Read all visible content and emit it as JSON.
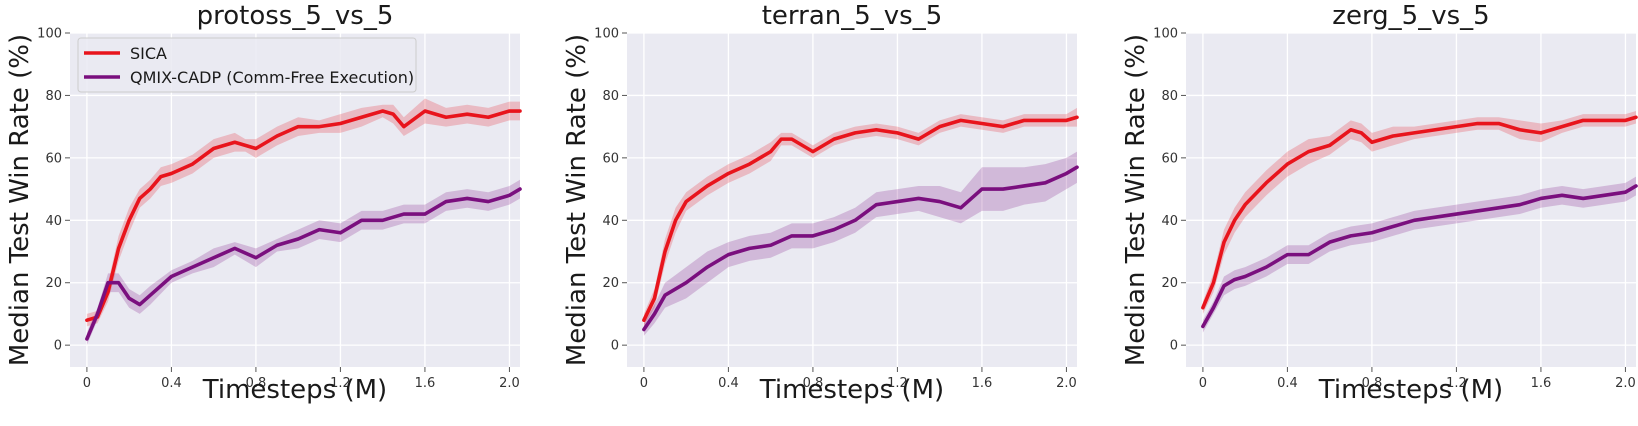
{
  "chart_data": [
    {
      "type": "line",
      "title": "protoss_5_vs_5",
      "xlabel": "Timesteps (M)",
      "ylabel": "Median Test Win Rate (%)",
      "xlim": [
        -0.08,
        2.05
      ],
      "ylim": [
        -7,
        100
      ],
      "xticks": [
        "0",
        "0.4",
        "0.8",
        "1.2",
        "1.6",
        "2.0"
      ],
      "yticks": [
        "0",
        "20",
        "40",
        "60",
        "80",
        "100"
      ],
      "grid": true,
      "legend": {
        "placement": "top-left",
        "entries": [
          "SICA",
          "QMIX-CADP (Comm-Free Execution)"
        ]
      },
      "series": [
        {
          "name": "SICA",
          "color": "#e8141c",
          "x": [
            0,
            0.05,
            0.1,
            0.15,
            0.2,
            0.25,
            0.3,
            0.35,
            0.4,
            0.5,
            0.6,
            0.7,
            0.75,
            0.8,
            0.9,
            1.0,
            1.1,
            1.2,
            1.3,
            1.4,
            1.45,
            1.5,
            1.6,
            1.7,
            1.8,
            1.9,
            2.0,
            2.05
          ],
          "y": [
            8,
            9,
            17,
            31,
            40,
            47,
            50,
            54,
            55,
            58,
            63,
            65,
            64,
            63,
            67,
            70,
            70,
            71,
            73,
            75,
            74,
            70,
            75,
            73,
            74,
            73,
            75,
            75
          ],
          "band": [
            2,
            2,
            3,
            4,
            4,
            3,
            3,
            3,
            3,
            3,
            3,
            3,
            2,
            3,
            3,
            3,
            2,
            3,
            3,
            2,
            3,
            3,
            4,
            3,
            3,
            3,
            3,
            3
          ]
        },
        {
          "name": "QMIX-CADP (Comm-Free Execution)",
          "color": "#7a0f7e",
          "x": [
            0,
            0.05,
            0.1,
            0.15,
            0.2,
            0.25,
            0.3,
            0.4,
            0.5,
            0.6,
            0.7,
            0.8,
            0.9,
            1.0,
            1.1,
            1.2,
            1.3,
            1.4,
            1.5,
            1.6,
            1.7,
            1.8,
            1.9,
            2.0,
            2.05
          ],
          "y": [
            2,
            10,
            20,
            20,
            15,
            13,
            16,
            22,
            25,
            28,
            31,
            28,
            32,
            34,
            37,
            36,
            40,
            40,
            42,
            42,
            46,
            47,
            46,
            48,
            50
          ],
          "band": [
            2,
            2,
            3,
            3,
            3,
            3,
            3,
            2,
            2,
            3,
            2,
            3,
            2,
            3,
            3,
            3,
            3,
            3,
            3,
            3,
            3,
            3,
            3,
            3,
            3
          ]
        }
      ]
    },
    {
      "type": "line",
      "title": "terran_5_vs_5",
      "xlabel": "Timesteps (M)",
      "ylabel": "Median Test Win Rate (%)",
      "xlim": [
        -0.08,
        2.05
      ],
      "ylim": [
        -7,
        100
      ],
      "xticks": [
        "0",
        "0.4",
        "0.8",
        "1.2",
        "1.6",
        "2.0"
      ],
      "yticks": [
        "0",
        "20",
        "40",
        "60",
        "80",
        "100"
      ],
      "grid": true,
      "series": [
        {
          "name": "SICA",
          "color": "#e8141c",
          "x": [
            0,
            0.05,
            0.1,
            0.15,
            0.2,
            0.3,
            0.4,
            0.5,
            0.6,
            0.65,
            0.7,
            0.8,
            0.9,
            1.0,
            1.1,
            1.2,
            1.3,
            1.4,
            1.5,
            1.6,
            1.7,
            1.8,
            1.9,
            2.0,
            2.05
          ],
          "y": [
            8,
            15,
            30,
            40,
            46,
            51,
            55,
            58,
            62,
            66,
            66,
            62,
            66,
            68,
            69,
            68,
            66,
            70,
            72,
            71,
            70,
            72,
            72,
            72,
            73
          ],
          "band": [
            2,
            3,
            4,
            4,
            3,
            3,
            3,
            3,
            3,
            2,
            2,
            2,
            2,
            2,
            2,
            2,
            2,
            2,
            2,
            2,
            2,
            2,
            2,
            2,
            3
          ]
        },
        {
          "name": "QMIX-CADP (Comm-Free Execution)",
          "color": "#7a0f7e",
          "x": [
            0,
            0.05,
            0.1,
            0.2,
            0.3,
            0.4,
            0.5,
            0.6,
            0.7,
            0.8,
            0.9,
            1.0,
            1.1,
            1.2,
            1.3,
            1.4,
            1.5,
            1.6,
            1.7,
            1.8,
            1.9,
            2.0,
            2.05
          ],
          "y": [
            5,
            10,
            16,
            20,
            25,
            29,
            31,
            32,
            35,
            35,
            37,
            40,
            45,
            46,
            47,
            46,
            44,
            50,
            50,
            51,
            52,
            55,
            57
          ],
          "band": [
            2,
            3,
            4,
            5,
            5,
            4,
            4,
            4,
            4,
            4,
            4,
            4,
            4,
            4,
            4,
            5,
            5,
            7,
            7,
            6,
            6,
            5,
            5
          ]
        }
      ]
    },
    {
      "type": "line",
      "title": "zerg_5_vs_5",
      "xlabel": "Timesteps (M)",
      "ylabel": "Median Test Win Rate (%)",
      "xlim": [
        -0.08,
        2.05
      ],
      "ylim": [
        -7,
        100
      ],
      "xticks": [
        "0",
        "0.4",
        "0.8",
        "1.2",
        "1.6",
        "2.0"
      ],
      "yticks": [
        "0",
        "20",
        "40",
        "60",
        "80",
        "100"
      ],
      "grid": true,
      "series": [
        {
          "name": "SICA",
          "color": "#e8141c",
          "x": [
            0,
            0.05,
            0.1,
            0.15,
            0.2,
            0.3,
            0.4,
            0.5,
            0.6,
            0.7,
            0.75,
            0.8,
            0.9,
            1.0,
            1.1,
            1.2,
            1.3,
            1.4,
            1.5,
            1.6,
            1.7,
            1.8,
            1.9,
            2.0,
            2.05
          ],
          "y": [
            12,
            20,
            33,
            40,
            45,
            52,
            58,
            62,
            64,
            69,
            68,
            65,
            67,
            68,
            69,
            70,
            71,
            71,
            69,
            68,
            70,
            72,
            72,
            72,
            73
          ],
          "band": [
            2,
            3,
            4,
            4,
            4,
            4,
            4,
            4,
            3,
            3,
            3,
            3,
            3,
            2,
            2,
            2,
            2,
            2,
            3,
            3,
            2,
            2,
            2,
            2,
            2
          ]
        },
        {
          "name": "QMIX-CADP (Comm-Free Execution)",
          "color": "#7a0f7e",
          "x": [
            0,
            0.05,
            0.1,
            0.15,
            0.2,
            0.3,
            0.4,
            0.5,
            0.6,
            0.7,
            0.8,
            0.9,
            1.0,
            1.1,
            1.2,
            1.3,
            1.4,
            1.5,
            1.6,
            1.7,
            1.8,
            1.9,
            2.0,
            2.05
          ],
          "y": [
            6,
            12,
            19,
            21,
            22,
            25,
            29,
            29,
            33,
            35,
            36,
            38,
            40,
            41,
            42,
            43,
            44,
            45,
            47,
            48,
            47,
            48,
            49,
            51
          ],
          "band": [
            2,
            2,
            3,
            3,
            3,
            3,
            3,
            3,
            3,
            3,
            3,
            3,
            3,
            3,
            3,
            3,
            3,
            3,
            3,
            3,
            3,
            3,
            3,
            3
          ]
        }
      ]
    }
  ]
}
